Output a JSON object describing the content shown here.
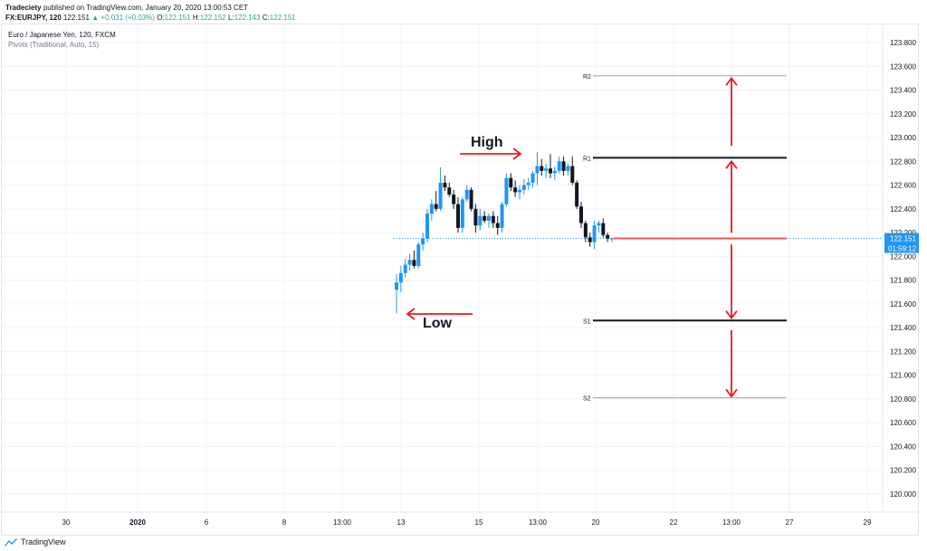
{
  "header": {
    "publisher": "Tradeciety",
    "published_text": "published on TradingView.com, January 20, 2020 13:00:53 CET",
    "symbol": "FX:EURJPY, 120",
    "last": "122.151",
    "change_icon": "triangle-up-icon",
    "change": "+0.031 (+0.03%)",
    "o_label": "O:",
    "o": "122.151",
    "h_label": "H:",
    "h": "122.152",
    "l_label": "L:",
    "l": "122.143",
    "c_label": "C:",
    "c": "122.151"
  },
  "legend": {
    "title": "Euro / Japanese Yen, 120, FXCM",
    "indicator": "Pivots (Traditional, Auto, 15)"
  },
  "footer": {
    "brand": "TradingView",
    "icon": "tradingview-logo-icon"
  },
  "colors": {
    "up_candle": "#2196f3",
    "down_candle": "#131722",
    "pivot_line": "#ef5350",
    "r1_s1_line": "#131722",
    "r2_s2_line": "#b2b5be",
    "annotation": "#e41e1e",
    "price_tag": "#2196f3",
    "grid": "#f0f3fa"
  },
  "chart_data": {
    "type": "candlestick",
    "ylim": [
      120.0,
      123.9
    ],
    "y_ticks": [
      "123.800",
      "123.600",
      "123.400",
      "123.200",
      "123.000",
      "122.800",
      "122.600",
      "122.400",
      "122.200",
      "122.000",
      "121.800",
      "121.600",
      "121.400",
      "121.200",
      "121.000",
      "120.800",
      "120.600",
      "120.400",
      "120.200",
      "120.000"
    ],
    "x_ticks": [
      "30",
      "2020",
      "6",
      "8",
      "13:00",
      "13",
      "15",
      "13:00",
      "20",
      "22",
      "13:00",
      "27",
      "29"
    ],
    "price_tag": "122.151",
    "countdown_tag": "01:59:12",
    "current_price": 122.151,
    "pivots": [
      {
        "label": "R2",
        "value": 123.52
      },
      {
        "label": "R1",
        "value": 122.83
      },
      {
        "label": "",
        "value": 122.151
      },
      {
        "label": "S1",
        "value": 121.46
      },
      {
        "label": "S2",
        "value": 120.81
      }
    ],
    "annotations": {
      "high_label": "High",
      "low_label": "Low"
    },
    "candles": [
      {
        "o": 121.72,
        "h": 121.85,
        "l": 121.52,
        "c": 121.78
      },
      {
        "o": 121.78,
        "h": 121.92,
        "l": 121.7,
        "c": 121.86
      },
      {
        "o": 121.86,
        "h": 121.98,
        "l": 121.82,
        "c": 121.93
      },
      {
        "o": 121.93,
        "h": 122.02,
        "l": 121.88,
        "c": 121.97
      },
      {
        "o": 121.97,
        "h": 122.05,
        "l": 121.9,
        "c": 121.92
      },
      {
        "o": 121.92,
        "h": 122.12,
        "l": 121.9,
        "c": 122.1
      },
      {
        "o": 122.1,
        "h": 122.2,
        "l": 122.05,
        "c": 122.15
      },
      {
        "o": 122.15,
        "h": 122.4,
        "l": 122.12,
        "c": 122.36
      },
      {
        "o": 122.36,
        "h": 122.48,
        "l": 122.3,
        "c": 122.44
      },
      {
        "o": 122.44,
        "h": 122.55,
        "l": 122.38,
        "c": 122.4
      },
      {
        "o": 122.4,
        "h": 122.75,
        "l": 122.38,
        "c": 122.62
      },
      {
        "o": 122.62,
        "h": 122.68,
        "l": 122.55,
        "c": 122.58
      },
      {
        "o": 122.58,
        "h": 122.62,
        "l": 122.5,
        "c": 122.52
      },
      {
        "o": 122.52,
        "h": 122.56,
        "l": 122.4,
        "c": 122.44
      },
      {
        "o": 122.44,
        "h": 122.5,
        "l": 122.2,
        "c": 122.24
      },
      {
        "o": 122.24,
        "h": 122.5,
        "l": 122.2,
        "c": 122.48
      },
      {
        "o": 122.48,
        "h": 122.6,
        "l": 122.46,
        "c": 122.56
      },
      {
        "o": 122.56,
        "h": 122.58,
        "l": 122.38,
        "c": 122.4
      },
      {
        "o": 122.4,
        "h": 122.44,
        "l": 122.2,
        "c": 122.26
      },
      {
        "o": 122.26,
        "h": 122.4,
        "l": 122.22,
        "c": 122.34
      },
      {
        "o": 122.34,
        "h": 122.38,
        "l": 122.28,
        "c": 122.3
      },
      {
        "o": 122.3,
        "h": 122.36,
        "l": 122.24,
        "c": 122.34
      },
      {
        "o": 122.34,
        "h": 122.38,
        "l": 122.24,
        "c": 122.28
      },
      {
        "o": 122.28,
        "h": 122.34,
        "l": 122.18,
        "c": 122.24
      },
      {
        "o": 122.24,
        "h": 122.46,
        "l": 122.2,
        "c": 122.44
      },
      {
        "o": 122.44,
        "h": 122.7,
        "l": 122.42,
        "c": 122.66
      },
      {
        "o": 122.66,
        "h": 122.7,
        "l": 122.55,
        "c": 122.58
      },
      {
        "o": 122.58,
        "h": 122.64,
        "l": 122.5,
        "c": 122.54
      },
      {
        "o": 122.54,
        "h": 122.6,
        "l": 122.48,
        "c": 122.56
      },
      {
        "o": 122.56,
        "h": 122.65,
        "l": 122.52,
        "c": 122.6
      },
      {
        "o": 122.6,
        "h": 122.66,
        "l": 122.56,
        "c": 122.62
      },
      {
        "o": 122.62,
        "h": 122.72,
        "l": 122.58,
        "c": 122.7
      },
      {
        "o": 122.7,
        "h": 122.88,
        "l": 122.6,
        "c": 122.76
      },
      {
        "o": 122.76,
        "h": 122.82,
        "l": 122.68,
        "c": 122.72
      },
      {
        "o": 122.72,
        "h": 122.78,
        "l": 122.66,
        "c": 122.74
      },
      {
        "o": 122.74,
        "h": 122.86,
        "l": 122.66,
        "c": 122.7
      },
      {
        "o": 122.7,
        "h": 122.76,
        "l": 122.64,
        "c": 122.72
      },
      {
        "o": 122.72,
        "h": 122.84,
        "l": 122.7,
        "c": 122.8
      },
      {
        "o": 122.8,
        "h": 122.84,
        "l": 122.68,
        "c": 122.72
      },
      {
        "o": 122.72,
        "h": 122.78,
        "l": 122.68,
        "c": 122.76
      },
      {
        "o": 122.76,
        "h": 122.84,
        "l": 122.6,
        "c": 122.62
      },
      {
        "o": 122.62,
        "h": 122.64,
        "l": 122.4,
        "c": 122.42
      },
      {
        "o": 122.42,
        "h": 122.46,
        "l": 122.24,
        "c": 122.28
      },
      {
        "o": 122.28,
        "h": 122.3,
        "l": 122.12,
        "c": 122.16
      },
      {
        "o": 122.16,
        "h": 122.2,
        "l": 122.08,
        "c": 122.12
      },
      {
        "o": 122.12,
        "h": 122.3,
        "l": 122.06,
        "c": 122.26
      },
      {
        "o": 122.26,
        "h": 122.3,
        "l": 122.2,
        "c": 122.28
      },
      {
        "o": 122.28,
        "h": 122.32,
        "l": 122.16,
        "c": 122.18
      },
      {
        "o": 122.18,
        "h": 122.2,
        "l": 122.12,
        "c": 122.15
      },
      {
        "o": 122.15,
        "h": 122.16,
        "l": 122.12,
        "c": 122.151
      }
    ]
  }
}
